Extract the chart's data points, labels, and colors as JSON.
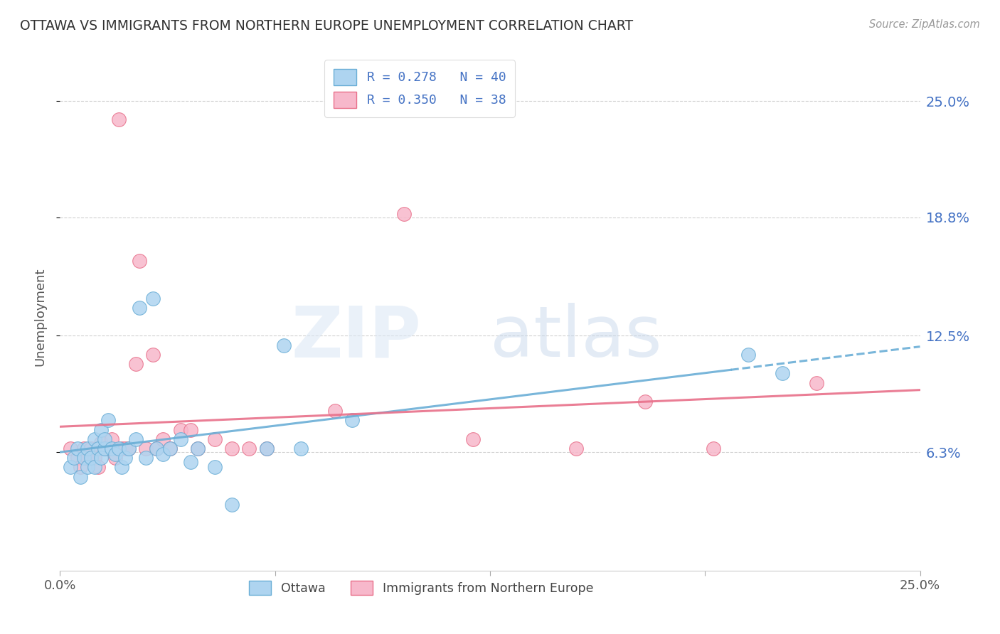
{
  "title": "OTTAWA VS IMMIGRANTS FROM NORTHERN EUROPE UNEMPLOYMENT CORRELATION CHART",
  "source": "Source: ZipAtlas.com",
  "ylabel": "Unemployment",
  "ytick_labels": [
    "25.0%",
    "18.8%",
    "12.5%",
    "6.3%"
  ],
  "ytick_values": [
    0.25,
    0.188,
    0.125,
    0.063
  ],
  "xlim": [
    0.0,
    0.25
  ],
  "ylim": [
    0.0,
    0.27
  ],
  "legend_label1": "Ottawa",
  "legend_label2": "Immigrants from Northern Europe",
  "ottawa_color": "#aed4f0",
  "immigrants_color": "#f7b8cb",
  "trend_ottawa_color": "#6aaed6",
  "trend_immigrants_color": "#e8708a",
  "ottawa_x": [
    0.003,
    0.004,
    0.005,
    0.006,
    0.007,
    0.008,
    0.008,
    0.009,
    0.01,
    0.01,
    0.011,
    0.012,
    0.012,
    0.013,
    0.013,
    0.014,
    0.015,
    0.016,
    0.017,
    0.018,
    0.019,
    0.02,
    0.022,
    0.023,
    0.025,
    0.027,
    0.028,
    0.03,
    0.032,
    0.035,
    0.038,
    0.04,
    0.045,
    0.05,
    0.06,
    0.065,
    0.07,
    0.085,
    0.2,
    0.21
  ],
  "ottawa_y": [
    0.055,
    0.06,
    0.065,
    0.05,
    0.06,
    0.055,
    0.065,
    0.06,
    0.07,
    0.055,
    0.065,
    0.06,
    0.075,
    0.065,
    0.07,
    0.08,
    0.065,
    0.062,
    0.065,
    0.055,
    0.06,
    0.065,
    0.07,
    0.14,
    0.06,
    0.145,
    0.065,
    0.062,
    0.065,
    0.07,
    0.058,
    0.065,
    0.055,
    0.035,
    0.065,
    0.12,
    0.065,
    0.08,
    0.115,
    0.105
  ],
  "immigrants_x": [
    0.003,
    0.005,
    0.006,
    0.007,
    0.008,
    0.009,
    0.01,
    0.011,
    0.012,
    0.013,
    0.014,
    0.015,
    0.016,
    0.017,
    0.018,
    0.019,
    0.02,
    0.022,
    0.023,
    0.025,
    0.027,
    0.028,
    0.03,
    0.032,
    0.035,
    0.038,
    0.04,
    0.045,
    0.05,
    0.055,
    0.06,
    0.08,
    0.1,
    0.12,
    0.15,
    0.17,
    0.19,
    0.22
  ],
  "immigrants_y": [
    0.065,
    0.06,
    0.055,
    0.065,
    0.06,
    0.065,
    0.06,
    0.055,
    0.068,
    0.065,
    0.065,
    0.07,
    0.06,
    0.24,
    0.065,
    0.065,
    0.065,
    0.11,
    0.165,
    0.065,
    0.115,
    0.065,
    0.07,
    0.065,
    0.075,
    0.075,
    0.065,
    0.07,
    0.065,
    0.065,
    0.065,
    0.085,
    0.19,
    0.07,
    0.065,
    0.09,
    0.065,
    0.1
  ],
  "trend_ottawa_start_x": 0.0,
  "trend_ottawa_solid_end_x": 0.195,
  "trend_ottawa_dashed_end_x": 0.25,
  "trend_immigrants_start_x": 0.0,
  "trend_immigrants_end_x": 0.25
}
